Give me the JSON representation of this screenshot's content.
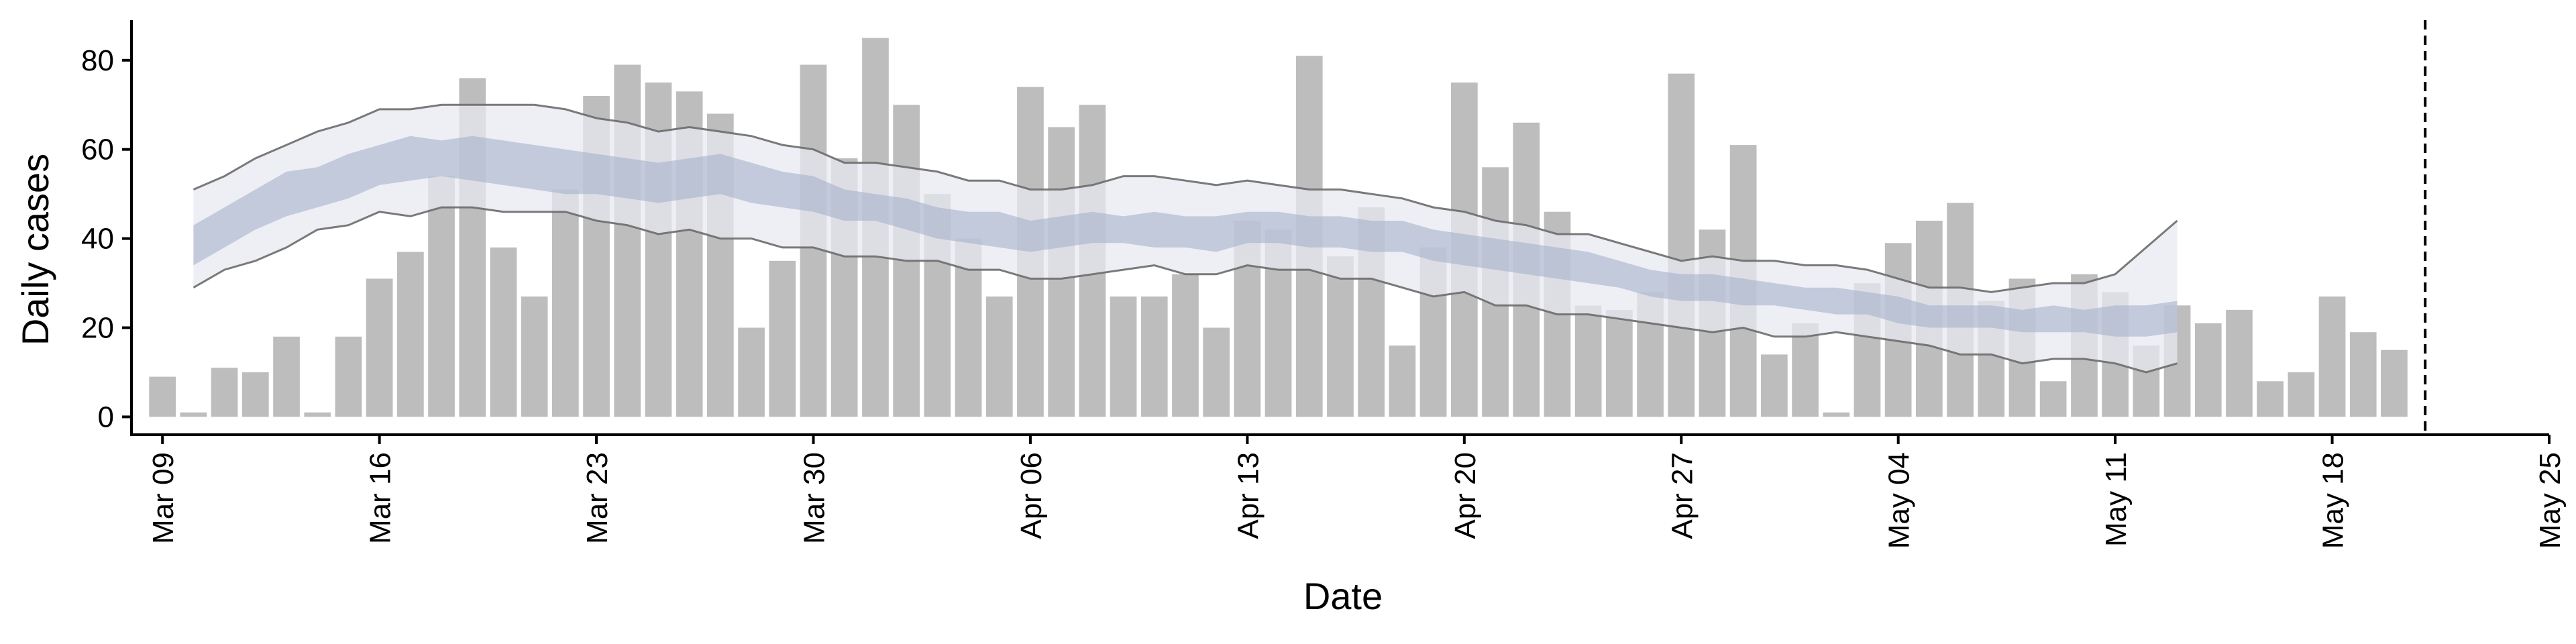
{
  "chart_data": {
    "type": "bar",
    "title": "",
    "xlabel": "Date",
    "ylabel": "Daily cases",
    "ylim": [
      -4,
      89
    ],
    "yticks": [
      0,
      20,
      40,
      60,
      80
    ],
    "x_start": "2020-03-08",
    "x_end": "2020-05-25",
    "x_tick_labels": [
      "Mar 09",
      "Mar 16",
      "Mar 23",
      "Mar 30",
      "Apr 06",
      "Apr 13",
      "Apr 20",
      "Apr 27",
      "May 04",
      "May 11",
      "May 18",
      "May 25"
    ],
    "grid": false,
    "colors": {
      "bars": "#bdbdbd",
      "outer_band": "#e8eaf1",
      "inner_band": "#a6b0cc",
      "band_lines": "#6b6b6b",
      "vline": "#000000"
    },
    "series": [
      {
        "type": "bar",
        "dates": [
          "2020-03-09",
          "2020-03-10",
          "2020-03-11",
          "2020-03-12",
          "2020-03-13",
          "2020-03-14",
          "2020-03-15",
          "2020-03-16",
          "2020-03-17",
          "2020-03-18",
          "2020-03-19",
          "2020-03-20",
          "2020-03-21",
          "2020-03-22",
          "2020-03-23",
          "2020-03-24",
          "2020-03-25",
          "2020-03-26",
          "2020-03-27",
          "2020-03-28",
          "2020-03-29",
          "2020-03-30",
          "2020-03-31",
          "2020-04-01",
          "2020-04-02",
          "2020-04-03",
          "2020-04-04",
          "2020-04-05",
          "2020-04-06",
          "2020-04-07",
          "2020-04-08",
          "2020-04-09",
          "2020-04-10",
          "2020-04-11",
          "2020-04-12",
          "2020-04-13",
          "2020-04-14",
          "2020-04-15",
          "2020-04-16",
          "2020-04-17",
          "2020-04-18",
          "2020-04-19",
          "2020-04-20",
          "2020-04-21",
          "2020-04-22",
          "2020-04-23",
          "2020-04-24",
          "2020-04-25",
          "2020-04-26",
          "2020-04-27",
          "2020-04-28",
          "2020-04-29",
          "2020-04-30",
          "2020-05-01",
          "2020-05-02",
          "2020-05-03",
          "2020-05-04",
          "2020-05-05",
          "2020-05-06",
          "2020-05-07",
          "2020-05-08",
          "2020-05-09",
          "2020-05-10",
          "2020-05-11",
          "2020-05-12",
          "2020-05-13",
          "2020-05-14",
          "2020-05-15",
          "2020-05-16",
          "2020-05-17",
          "2020-05-18",
          "2020-05-19",
          "2020-05-20",
          "2020-05-21"
        ],
        "values": [
          9,
          1,
          11,
          10,
          18,
          1,
          18,
          31,
          37,
          54,
          76,
          38,
          27,
          51,
          72,
          79,
          75,
          73,
          68,
          20,
          35,
          79,
          58,
          85,
          70,
          50,
          40,
          27,
          74,
          65,
          70,
          27,
          27,
          32,
          20,
          44,
          42,
          81,
          36,
          47,
          16,
          38,
          75,
          56,
          66,
          46,
          25,
          24,
          28,
          77,
          42,
          61,
          14,
          21,
          1,
          30,
          39,
          44,
          48,
          26,
          31,
          8,
          32,
          28,
          16,
          25,
          21,
          24,
          8,
          10,
          27,
          19,
          15,
          0
        ]
      },
      {
        "type": "band",
        "dates": [
          "2020-03-10",
          "2020-03-11",
          "2020-03-12",
          "2020-03-13",
          "2020-03-14",
          "2020-03-15",
          "2020-03-16",
          "2020-03-17",
          "2020-03-18",
          "2020-03-19",
          "2020-03-20",
          "2020-03-21",
          "2020-03-22",
          "2020-03-23",
          "2020-03-24",
          "2020-03-25",
          "2020-03-26",
          "2020-03-27",
          "2020-03-28",
          "2020-03-29",
          "2020-03-30",
          "2020-03-31",
          "2020-04-01",
          "2020-04-02",
          "2020-04-03",
          "2020-04-04",
          "2020-04-05",
          "2020-04-06",
          "2020-04-07",
          "2020-04-08",
          "2020-04-09",
          "2020-04-10",
          "2020-04-11",
          "2020-04-12",
          "2020-04-13",
          "2020-04-14",
          "2020-04-15",
          "2020-04-16",
          "2020-04-17",
          "2020-04-18",
          "2020-04-19",
          "2020-04-20",
          "2020-04-21",
          "2020-04-22",
          "2020-04-23",
          "2020-04-24",
          "2020-04-25",
          "2020-04-26",
          "2020-04-27",
          "2020-04-28",
          "2020-04-29",
          "2020-04-30",
          "2020-05-01",
          "2020-05-02",
          "2020-05-03",
          "2020-05-04",
          "2020-05-05",
          "2020-05-06",
          "2020-05-07",
          "2020-05-08",
          "2020-05-09",
          "2020-05-10",
          "2020-05-11",
          "2020-05-12",
          "2020-05-13"
        ],
        "outer_upper": [
          51,
          54,
          58,
          61,
          64,
          66,
          69,
          69,
          70,
          70,
          70,
          70,
          69,
          67,
          66,
          64,
          65,
          64,
          63,
          61,
          60,
          57,
          57,
          56,
          55,
          53,
          53,
          51,
          51,
          52,
          54,
          54,
          53,
          52,
          53,
          52,
          51,
          51,
          50,
          49,
          47,
          46,
          44,
          43,
          41,
          41,
          39,
          37,
          35,
          36,
          35,
          35,
          34,
          34,
          33,
          31,
          29,
          29,
          28,
          29,
          30,
          30,
          32,
          38,
          44
        ],
        "outer_lower": [
          29,
          33,
          35,
          38,
          42,
          43,
          46,
          45,
          47,
          47,
          46,
          46,
          46,
          44,
          43,
          41,
          42,
          40,
          40,
          38,
          38,
          36,
          36,
          35,
          35,
          33,
          33,
          31,
          31,
          32,
          33,
          34,
          32,
          32,
          34,
          33,
          33,
          31,
          31,
          29,
          27,
          28,
          25,
          25,
          23,
          23,
          22,
          21,
          20,
          19,
          20,
          18,
          18,
          19,
          18,
          17,
          16,
          14,
          14,
          12,
          13,
          13,
          12,
          10,
          12
        ],
        "inner_upper": [
          43,
          47,
          51,
          55,
          56,
          59,
          61,
          63,
          62,
          63,
          62,
          61,
          60,
          59,
          58,
          57,
          58,
          59,
          57,
          55,
          54,
          51,
          50,
          49,
          47,
          46,
          46,
          44,
          45,
          46,
          45,
          46,
          45,
          45,
          46,
          46,
          45,
          45,
          44,
          44,
          42,
          41,
          40,
          39,
          38,
          37,
          35,
          33,
          32,
          32,
          31,
          30,
          29,
          29,
          28,
          27,
          25,
          25,
          25,
          24,
          25,
          24,
          25,
          25,
          26
        ],
        "inner_lower": [
          34,
          38,
          42,
          45,
          47,
          49,
          52,
          53,
          54,
          53,
          52,
          51,
          50,
          50,
          49,
          48,
          49,
          50,
          48,
          47,
          46,
          44,
          44,
          42,
          40,
          39,
          38,
          37,
          38,
          39,
          39,
          38,
          38,
          37,
          39,
          39,
          38,
          38,
          37,
          37,
          35,
          34,
          33,
          32,
          31,
          30,
          29,
          27,
          26,
          26,
          25,
          25,
          24,
          23,
          23,
          21,
          20,
          20,
          20,
          19,
          19,
          19,
          18,
          18,
          19
        ]
      }
    ],
    "vline": "2020-05-21"
  }
}
